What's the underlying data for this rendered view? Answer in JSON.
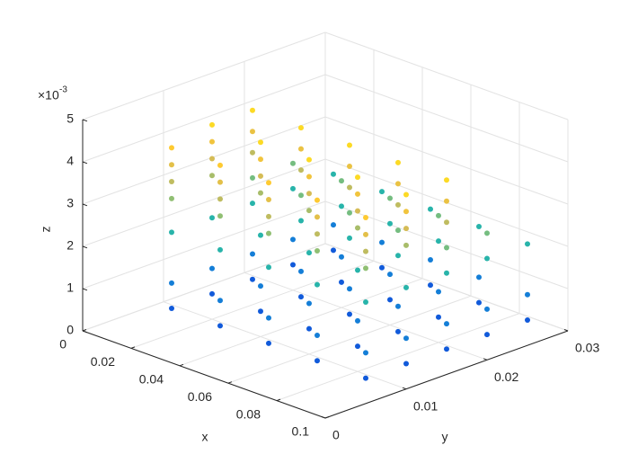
{
  "chart_data": {
    "type": "scatter3",
    "xlabel": "x",
    "ylabel": "y",
    "zlabel": "z",
    "z_multiplier": "×10",
    "z_multiplier_power": "-3",
    "xlim": [
      0,
      0.1
    ],
    "xticks": [
      0,
      0.02,
      0.04,
      0.06,
      0.08,
      0.1
    ],
    "ylim": [
      0,
      0.03
    ],
    "yticks": [
      0,
      0.01,
      0.02,
      0.03
    ],
    "zlim": [
      0,
      0.005
    ],
    "zticks": [
      0,
      {
        "value": 0.001,
        "label": "1"
      },
      {
        "value": 0.002,
        "label": "2"
      },
      {
        "value": 0.003,
        "label": "3"
      },
      {
        "value": 0.004,
        "label": "4"
      },
      {
        "value": 0.005,
        "label": "5"
      }
    ],
    "grid": true,
    "colormap": "parula",
    "x": [
      0.02,
      0.02,
      0.02,
      0.02,
      0.02,
      0.02,
      0.02,
      0.02,
      0.02,
      0.02,
      0.02,
      0.02,
      0.02,
      0.02,
      0.02,
      0.02,
      0.02,
      0.02,
      0.02,
      0.02,
      0.02,
      0.02,
      0.02,
      0.02,
      0.02,
      0.02,
      0.02,
      0.02,
      0.04,
      0.04,
      0.04,
      0.04,
      0.04,
      0.04,
      0.04,
      0.04,
      0.04,
      0.04,
      0.04,
      0.04,
      0.04,
      0.04,
      0.04,
      0.04,
      0.04,
      0.04,
      0.04,
      0.04,
      0.04,
      0.04,
      0.04,
      0.04,
      0.04,
      0.04,
      0.04,
      0.04,
      0.06,
      0.06,
      0.06,
      0.06,
      0.06,
      0.06,
      0.06,
      0.06,
      0.06,
      0.06,
      0.06,
      0.06,
      0.06,
      0.06,
      0.06,
      0.06,
      0.06,
      0.06,
      0.06,
      0.06,
      0.06,
      0.06,
      0.06,
      0.06,
      0.06,
      0.06,
      0.06,
      0.06,
      0.08,
      0.08,
      0.08,
      0.08,
      0.08,
      0.08,
      0.08,
      0.08,
      0.08,
      0.08,
      0.08,
      0.08,
      0.08,
      0.08,
      0.08,
      0.08,
      0.08,
      0.08,
      0.08,
      0.08,
      0.08,
      0.08,
      0.08,
      0.08,
      0.08,
      0.08,
      0.08,
      0.08,
      0.1,
      0.1,
      0.1,
      0.1,
      0.1,
      0.1,
      0.1,
      0.1,
      0.1,
      0.1,
      0.1,
      0.1,
      0.1,
      0.1,
      0.1,
      0.1,
      0.1,
      0.1,
      0.1,
      0.1,
      0.1,
      0.1,
      0.1,
      0.1,
      0.1,
      0.1,
      0.1,
      0.1
    ],
    "y": [
      0.005,
      0.005,
      0.005,
      0.005,
      0.005,
      0.005,
      0.005,
      0.01,
      0.01,
      0.01,
      0.01,
      0.01,
      0.01,
      0.01,
      0.015,
      0.015,
      0.015,
      0.015,
      0.015,
      0.015,
      0.015,
      0.02,
      0.02,
      0.02,
      0.02,
      0.025,
      0.025,
      0.025,
      0.005,
      0.005,
      0.005,
      0.005,
      0.005,
      0.005,
      0.005,
      0.01,
      0.01,
      0.01,
      0.01,
      0.01,
      0.01,
      0.01,
      0.015,
      0.015,
      0.015,
      0.015,
      0.015,
      0.015,
      0.015,
      0.02,
      0.02,
      0.02,
      0.02,
      0.025,
      0.025,
      0.025,
      0.005,
      0.005,
      0.005,
      0.005,
      0.005,
      0.005,
      0.005,
      0.01,
      0.01,
      0.01,
      0.01,
      0.01,
      0.01,
      0.01,
      0.015,
      0.015,
      0.015,
      0.015,
      0.015,
      0.015,
      0.015,
      0.02,
      0.02,
      0.02,
      0.02,
      0.025,
      0.025,
      0.025,
      0.005,
      0.005,
      0.005,
      0.005,
      0.005,
      0.005,
      0.005,
      0.01,
      0.01,
      0.01,
      0.01,
      0.01,
      0.01,
      0.01,
      0.015,
      0.015,
      0.015,
      0.015,
      0.015,
      0.015,
      0.015,
      0.02,
      0.02,
      0.02,
      0.02,
      0.025,
      0.025,
      0.025,
      0.005,
      0.005,
      0.005,
      0.005,
      0.005,
      0.005,
      0.005,
      0.01,
      0.01,
      0.01,
      0.01,
      0.01,
      0.01,
      0.01,
      0.015,
      0.015,
      0.015,
      0.015,
      0.015,
      0.015,
      0.015,
      0.02,
      0.02,
      0.02,
      0.02,
      0.025,
      0.025,
      0.025
    ],
    "z": [
      0.0006,
      0.0012,
      0.0024,
      0.0032,
      0.0036,
      0.004,
      0.0044,
      0.0006,
      0.0012,
      0.0024,
      0.0034,
      0.0038,
      0.0042,
      0.0046,
      0.0006,
      0.0012,
      0.0024,
      0.003,
      0.0036,
      0.0041,
      0.0046,
      0.0006,
      0.0012,
      0.0024,
      0.003,
      0.0006,
      0.0012,
      0.0024,
      0.0006,
      0.0012,
      0.0024,
      0.0032,
      0.0036,
      0.004,
      0.0044,
      0.0006,
      0.0012,
      0.0024,
      0.0034,
      0.0038,
      0.0042,
      0.0046,
      0.0006,
      0.0012,
      0.0024,
      0.003,
      0.0036,
      0.0041,
      0.0046,
      0.0006,
      0.0012,
      0.0024,
      0.003,
      0.0006,
      0.0012,
      0.0024,
      0.0006,
      0.0012,
      0.0024,
      0.0032,
      0.0036,
      0.004,
      0.0044,
      0.0006,
      0.0012,
      0.0024,
      0.0034,
      0.0038,
      0.0042,
      0.0046,
      0.0006,
      0.0012,
      0.0024,
      0.003,
      0.0036,
      0.0041,
      0.0046,
      0.0006,
      0.0012,
      0.0024,
      0.003,
      0.0006,
      0.0012,
      0.0024,
      0.0006,
      0.0012,
      0.0024,
      0.0032,
      0.0036,
      0.004,
      0.0044,
      0.0006,
      0.0012,
      0.0024,
      0.0034,
      0.0038,
      0.0042,
      0.0046,
      0.0006,
      0.0012,
      0.0024,
      0.003,
      0.0036,
      0.0041,
      0.0046,
      0.0006,
      0.0012,
      0.0024,
      0.003,
      0.0006,
      0.0012,
      0.0024,
      0.0006,
      0.0012,
      0.0024,
      0.0032,
      0.0036,
      0.004,
      0.0044,
      0.0006,
      0.0012,
      0.0024,
      0.0034,
      0.0038,
      0.0042,
      0.0046,
      0.0006,
      0.0012,
      0.0024,
      0.003,
      0.0036,
      0.0041,
      0.0046,
      0.0006,
      0.0012,
      0.0024,
      0.003,
      0.0006,
      0.0012,
      0.0024
    ]
  }
}
